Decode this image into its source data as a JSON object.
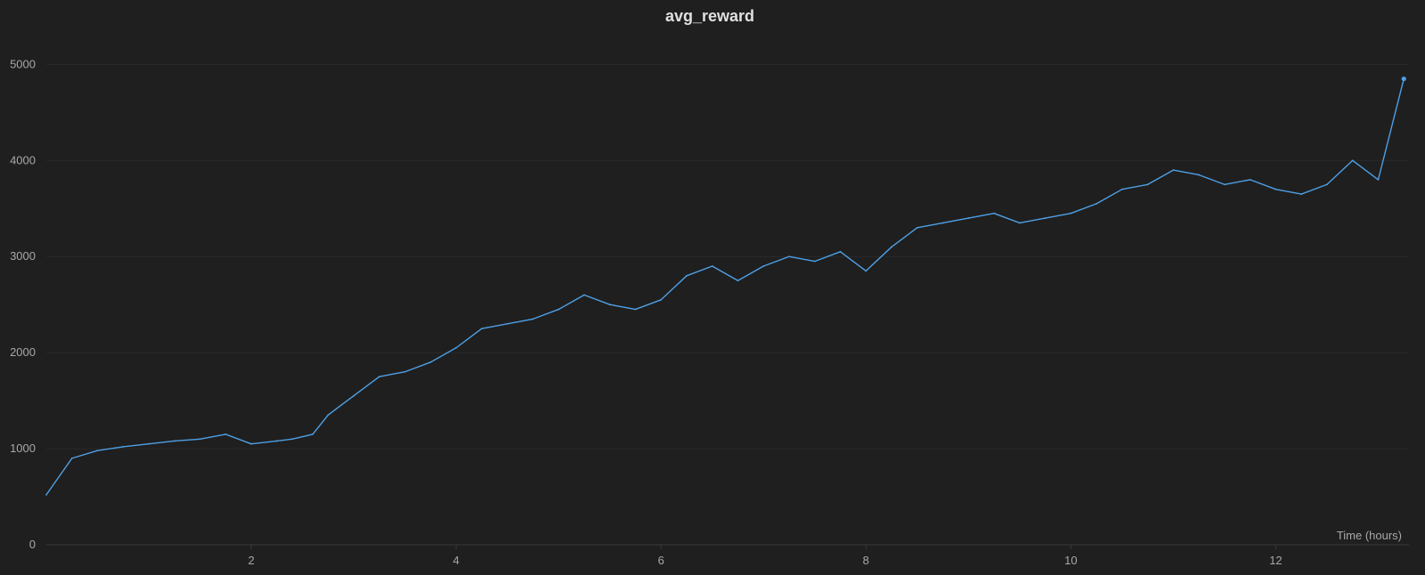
{
  "chart_data": {
    "type": "line",
    "title": "avg_reward",
    "xlabel": "Time (hours)",
    "ylabel": "",
    "xlim": [
      0,
      13.3
    ],
    "ylim": [
      0,
      5300
    ],
    "x_ticks": [
      2,
      4,
      6,
      8,
      10,
      12
    ],
    "y_ticks": [
      0,
      1000,
      2000,
      3000,
      4000,
      5000
    ],
    "grid": true,
    "legend": "none",
    "colors": {
      "line": "#4ea0e6",
      "background": "#1f1f1f"
    },
    "series": [
      {
        "x": [
          0.0,
          0.25,
          0.5,
          0.75,
          1.0,
          1.25,
          1.5,
          1.75,
          2.0,
          2.25,
          2.4,
          2.6,
          2.75,
          3.0,
          3.25,
          3.5,
          3.75,
          4.0,
          4.25,
          4.5,
          4.75,
          5.0,
          5.25,
          5.5,
          5.75,
          6.0,
          6.25,
          6.5,
          6.75,
          7.0,
          7.25,
          7.5,
          7.75,
          8.0,
          8.25,
          8.5,
          8.75,
          9.0,
          9.25,
          9.5,
          9.75,
          10.0,
          10.25,
          10.5,
          10.75,
          11.0,
          11.25,
          11.5,
          11.75,
          12.0,
          12.25,
          12.5,
          12.75,
          13.0,
          13.25
        ],
        "y": [
          520,
          900,
          980,
          1020,
          1050,
          1080,
          1100,
          1150,
          1050,
          1080,
          1100,
          1150,
          1350,
          1550,
          1750,
          1800,
          1900,
          2050,
          2250,
          2300,
          2350,
          2450,
          2600,
          2500,
          2450,
          2550,
          2800,
          2900,
          2750,
          2900,
          3000,
          2950,
          3050,
          2850,
          3100,
          3300,
          3350,
          3400,
          3450,
          3350,
          3400,
          3450,
          3550,
          3700,
          3750,
          3900,
          3850,
          3750,
          3800,
          3700,
          3650,
          3750,
          4000,
          3800,
          4850
        ]
      }
    ]
  }
}
